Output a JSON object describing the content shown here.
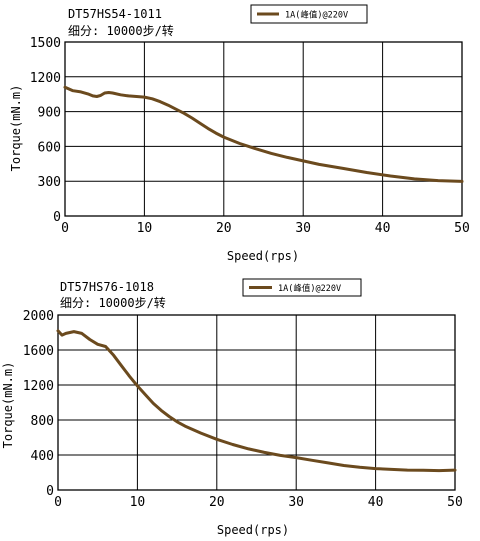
{
  "chart_data": [
    {
      "type": "line",
      "title": "DT57HS54-1011",
      "subtitle": "细分: 10000步/转",
      "xlabel": "Speed(rps)",
      "ylabel": "Torque(mN.m)",
      "xlim": [
        0,
        50
      ],
      "ylim": [
        0,
        1500
      ],
      "xticks": [
        "0",
        "10",
        "20",
        "30",
        "40",
        "50"
      ],
      "yticks": [
        "0",
        "300",
        "600",
        "900",
        "1200",
        "1500"
      ],
      "grid": true,
      "legend_position": "top-right",
      "line_color": "#6b4a1e",
      "series": [
        {
          "name": "1A(峰值)@220V",
          "x": [
            0,
            0.5,
            1,
            2,
            3,
            3.5,
            4,
            4.5,
            5,
            5.5,
            6,
            7,
            8,
            9,
            10,
            11,
            12,
            13,
            14,
            15,
            16,
            17,
            18,
            19,
            20,
            22,
            24,
            26,
            28,
            30,
            32,
            35,
            38,
            41,
            44,
            47,
            50
          ],
          "y": [
            1110,
            1095,
            1080,
            1070,
            1050,
            1035,
            1030,
            1040,
            1060,
            1065,
            1060,
            1045,
            1035,
            1030,
            1025,
            1010,
            985,
            955,
            920,
            885,
            845,
            800,
            755,
            715,
            680,
            625,
            580,
            540,
            505,
            475,
            445,
            410,
            375,
            345,
            320,
            305,
            298
          ]
        }
      ]
    },
    {
      "type": "line",
      "title": "DT57HS76-1018",
      "subtitle": "细分: 10000步/转",
      "xlabel": "Speed(rps)",
      "ylabel": "Torque(mN.m)",
      "xlim": [
        0,
        50
      ],
      "ylim": [
        0,
        2000
      ],
      "xticks": [
        "0",
        "10",
        "20",
        "30",
        "40",
        "50"
      ],
      "yticks": [
        "0",
        "400",
        "800",
        "1200",
        "1600",
        "2000"
      ],
      "grid": true,
      "legend_position": "top-right",
      "line_color": "#6b4a1e",
      "series": [
        {
          "name": "1A(峰值)@220V",
          "x": [
            0,
            0.5,
            1,
            1.5,
            2,
            3,
            4,
            5,
            6,
            7,
            8,
            9,
            10,
            11,
            12,
            13,
            14,
            15,
            16,
            18,
            20,
            22,
            24,
            26,
            28,
            30,
            32,
            34,
            36,
            38,
            40,
            42,
            44,
            46,
            48,
            50
          ],
          "y": [
            1820,
            1770,
            1790,
            1800,
            1810,
            1790,
            1720,
            1665,
            1640,
            1540,
            1420,
            1300,
            1190,
            1090,
            990,
            910,
            840,
            780,
            730,
            650,
            580,
            520,
            470,
            430,
            395,
            370,
            340,
            310,
            280,
            260,
            245,
            235,
            228,
            225,
            222,
            228
          ]
        }
      ]
    }
  ]
}
